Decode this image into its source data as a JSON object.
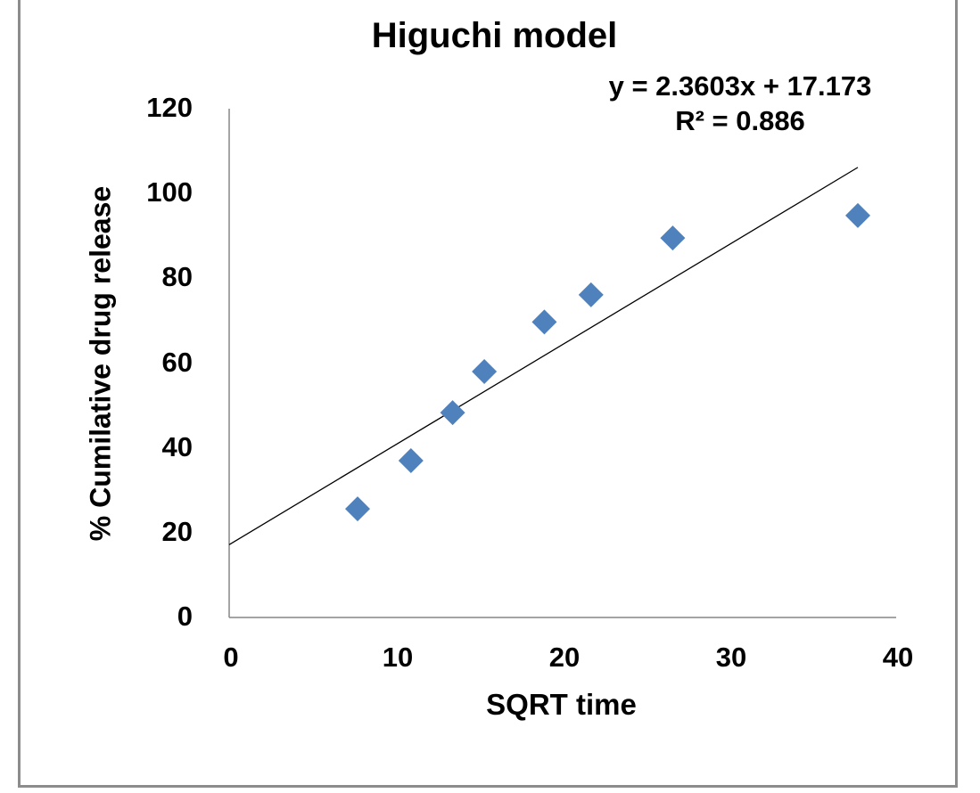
{
  "chart_data": {
    "type": "scatter",
    "title": "Higuchi model",
    "xlabel": "SQRT time",
    "ylabel": "% Cumilative drug release",
    "xlim": [
      0,
      40
    ],
    "ylim": [
      0,
      120
    ],
    "x_ticks": [
      "0",
      "10",
      "20",
      "30",
      "40"
    ],
    "y_ticks": [
      "0",
      "20",
      "40",
      "60",
      "80",
      "100",
      "120"
    ],
    "grid": false,
    "legend": null,
    "series": [
      {
        "name": "% Cumilative drug release",
        "marker": "diamond",
        "color": "#4f81bd",
        "x": [
          7.7,
          10.9,
          13.4,
          15.3,
          18.9,
          21.7,
          26.6,
          37.7
        ],
        "y": [
          25.6,
          37.0,
          48.3,
          58.0,
          69.7,
          76.1,
          89.5,
          94.8
        ]
      }
    ],
    "trendline": {
      "type": "linear",
      "slope": 2.3603,
      "intercept": 17.173,
      "x_range": [
        0,
        37.7
      ],
      "color": "#000000",
      "equation_label": "y = 2.3603x + 17.173",
      "r2_label": "R² = 0.886"
    }
  },
  "labels": {
    "title": "Higuchi model",
    "equation": "y = 2.3603x + 17.173",
    "r_squared": "R² = 0.886",
    "xlabel": "SQRT time",
    "ylabel": "% Cumilative drug release",
    "x_ticks": [
      "0",
      "10",
      "20",
      "30",
      "40"
    ],
    "y_ticks": [
      "0",
      "20",
      "40",
      "60",
      "80",
      "100",
      "120"
    ]
  }
}
